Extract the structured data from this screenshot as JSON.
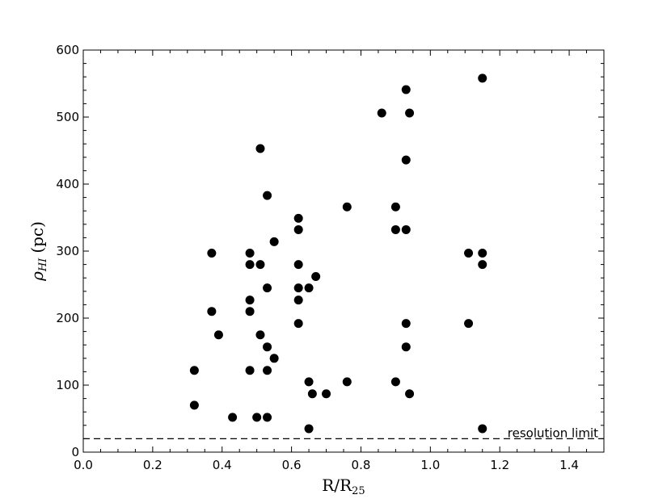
{
  "chart_data": {
    "type": "scatter",
    "title": "",
    "xlabel": "R/R",
    "xlabel_sub": "25",
    "ylabel": "ρ",
    "ylabel_sub": "HI",
    "ylabel_unit": "(pc)",
    "xlim": [
      0.0,
      1.5
    ],
    "ylim": [
      0,
      600
    ],
    "xticks": [
      0.0,
      0.2,
      0.4,
      0.6,
      0.8,
      1.0,
      1.2,
      1.4
    ],
    "xtick_labels": [
      "0.0",
      "0.2",
      "0.4",
      "0.6",
      "0.8",
      "1.0",
      "1.2",
      "1.4"
    ],
    "yticks": [
      0,
      100,
      200,
      300,
      400,
      500,
      600
    ],
    "ytick_labels": [
      "0",
      "100",
      "200",
      "300",
      "400",
      "500",
      "600"
    ],
    "grid": false,
    "marker_color": "#000000",
    "series": [
      {
        "points": [
          [
            0.32,
            122
          ],
          [
            0.32,
            70
          ],
          [
            0.37,
            297
          ],
          [
            0.37,
            210
          ],
          [
            0.39,
            175
          ],
          [
            0.43,
            52
          ],
          [
            0.48,
            297
          ],
          [
            0.48,
            280
          ],
          [
            0.48,
            227
          ],
          [
            0.48,
            210
          ],
          [
            0.48,
            122
          ],
          [
            0.5,
            52
          ],
          [
            0.51,
            453
          ],
          [
            0.51,
            280
          ],
          [
            0.51,
            175
          ],
          [
            0.53,
            383
          ],
          [
            0.53,
            245
          ],
          [
            0.53,
            157
          ],
          [
            0.53,
            122
          ],
          [
            0.53,
            52
          ],
          [
            0.55,
            314
          ],
          [
            0.55,
            140
          ],
          [
            0.62,
            349
          ],
          [
            0.62,
            332
          ],
          [
            0.62,
            280
          ],
          [
            0.62,
            245
          ],
          [
            0.62,
            227
          ],
          [
            0.62,
            192
          ],
          [
            0.65,
            245
          ],
          [
            0.65,
            105
          ],
          [
            0.65,
            35
          ],
          [
            0.66,
            87
          ],
          [
            0.67,
            262
          ],
          [
            0.7,
            87
          ],
          [
            0.76,
            366
          ],
          [
            0.76,
            105
          ],
          [
            0.86,
            506
          ],
          [
            0.9,
            366
          ],
          [
            0.9,
            332
          ],
          [
            0.9,
            105
          ],
          [
            0.93,
            541
          ],
          [
            0.93,
            436
          ],
          [
            0.93,
            332
          ],
          [
            0.93,
            192
          ],
          [
            0.93,
            157
          ],
          [
            0.94,
            506
          ],
          [
            0.94,
            87
          ],
          [
            1.11,
            297
          ],
          [
            1.11,
            192
          ],
          [
            1.15,
            558
          ],
          [
            1.15,
            297
          ],
          [
            1.15,
            280
          ],
          [
            1.15,
            35
          ]
        ]
      }
    ],
    "reference_line": {
      "y": 20,
      "style": "dashed",
      "label": "resolution limit"
    }
  }
}
